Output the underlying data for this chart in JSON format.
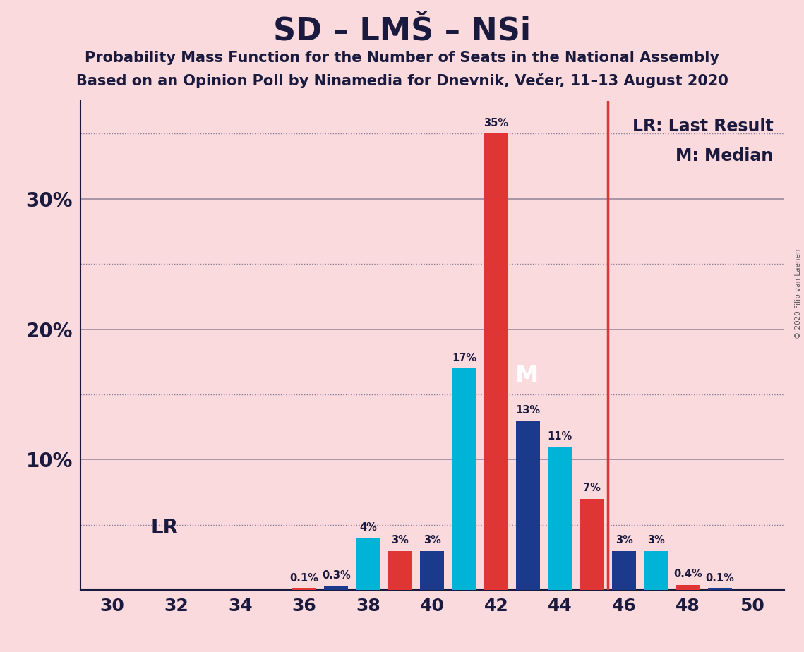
{
  "title": "SD – LMŠ – NSi",
  "subtitle1": "Probability Mass Function for the Number of Seats in the National Assembly",
  "subtitle2": "Based on an Opinion Poll by Ninamedia for Dnevnik, Večer, 11–13 August 2020",
  "copyright": "© 2020 Filip van Laenen",
  "seats": [
    30,
    31,
    32,
    33,
    34,
    35,
    36,
    37,
    38,
    39,
    40,
    41,
    42,
    43,
    44,
    45,
    46,
    47,
    48,
    49,
    50
  ],
  "probs": [
    0.0,
    0.0,
    0.0,
    0.0,
    0.0,
    0.0,
    0.1,
    0.3,
    4.0,
    3.0,
    3.0,
    17.0,
    35.0,
    13.0,
    11.0,
    7.0,
    3.0,
    3.0,
    0.4,
    0.1,
    0.0
  ],
  "color_cyan": "#00B4D8",
  "color_red": "#E03535",
  "color_darkblue": "#1B3A8C",
  "background_color": "#FADADD",
  "median": 42,
  "last_result_x": 45.5,
  "ylim_max": 37.5,
  "xticks": [
    30,
    32,
    34,
    36,
    38,
    40,
    42,
    44,
    46,
    48,
    50
  ],
  "yticks_solid": [
    10,
    20,
    30
  ],
  "yticks_dotted": [
    5,
    15,
    25,
    35
  ],
  "ytick_labels_positions": [
    10,
    20,
    30
  ],
  "color_text": "#1A1A3E",
  "color_spine": "#1A1A3E",
  "lr_line_color": "#E03535",
  "grid_color": "#555577"
}
